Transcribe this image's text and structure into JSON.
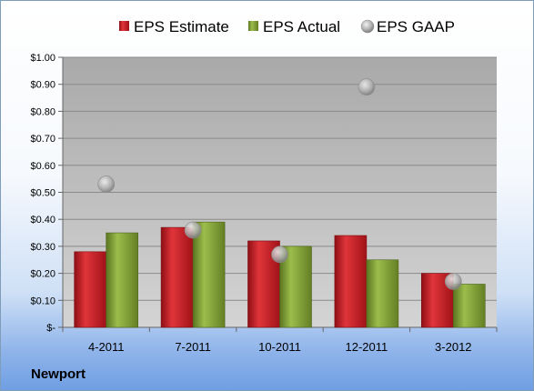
{
  "company": "Newport",
  "colors": {
    "estimate": "#c0181e",
    "actual": "#7a9a2e",
    "gaap": "#b0b0b0",
    "plot_bg": "#c8c8c8"
  },
  "chart_data": {
    "type": "bar",
    "categories": [
      "4-2011",
      "7-2011",
      "10-2011",
      "12-2011",
      "3-2012"
    ],
    "series": [
      {
        "name": "EPS Estimate",
        "values": [
          0.28,
          0.37,
          0.32,
          0.34,
          0.2
        ]
      },
      {
        "name": "EPS Actual",
        "values": [
          0.35,
          0.39,
          0.3,
          0.25,
          0.16
        ]
      },
      {
        "name": "EPS GAAP",
        "values": [
          0.53,
          0.36,
          0.27,
          0.89,
          0.17
        ],
        "marker": "circle"
      }
    ],
    "yticks": [
      "$-",
      "$0.10",
      "$0.20",
      "$0.30",
      "$0.40",
      "$0.50",
      "$0.60",
      "$0.70",
      "$0.80",
      "$0.90",
      "$1.00"
    ],
    "ylim": [
      0,
      1.0
    ],
    "grid": true,
    "legend": "top"
  }
}
